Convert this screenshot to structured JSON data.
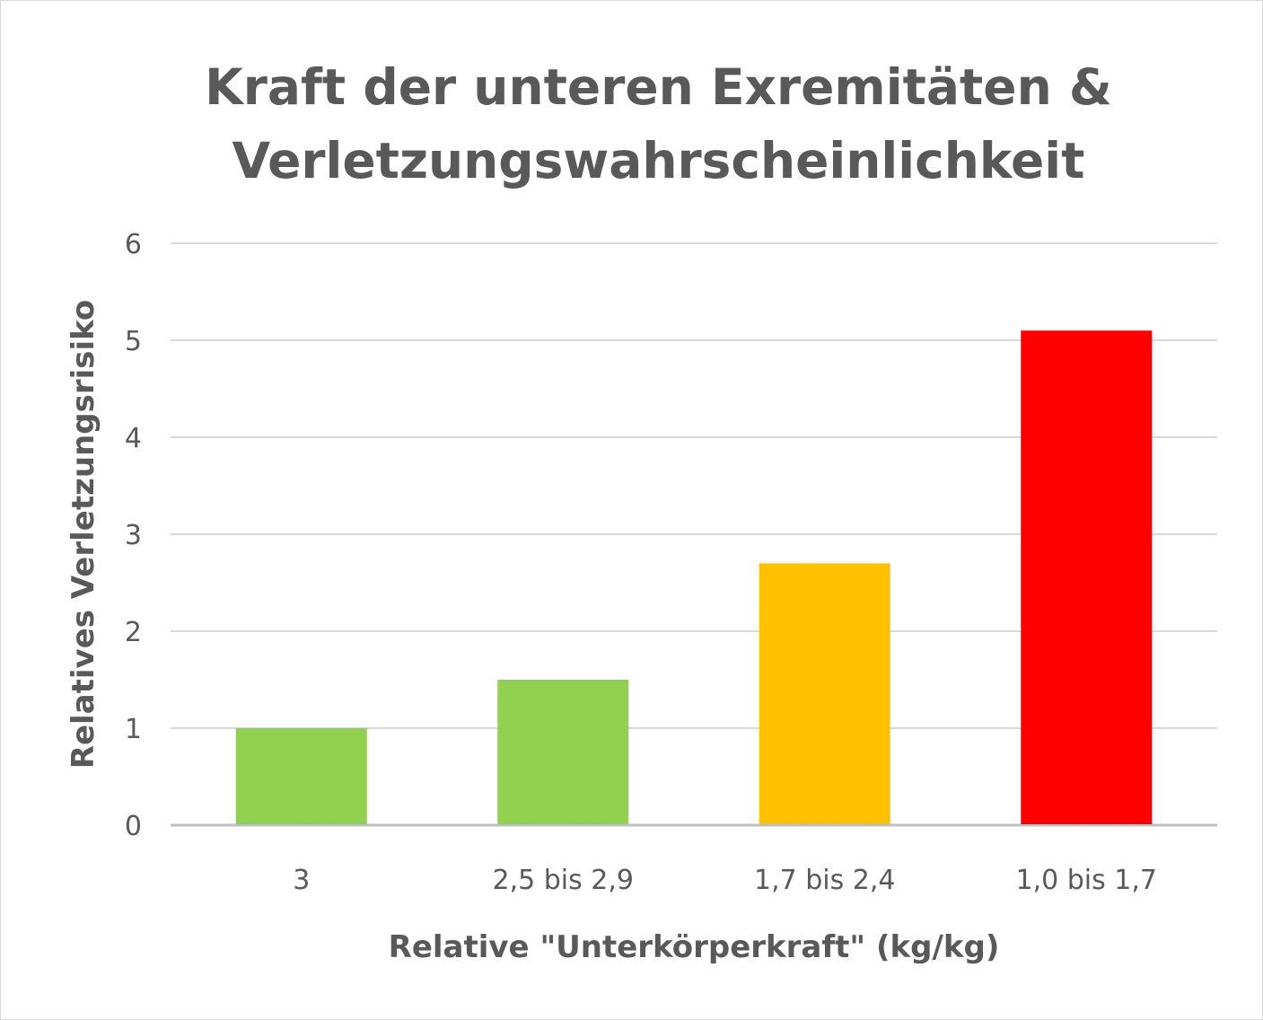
{
  "chart_data": {
    "type": "bar",
    "title": "Kraft der unteren Exremitäten & Verletzungswahrscheinlichkeit",
    "title_lines": [
      "Kraft der unteren Exremitäten &",
      "Verletzungswahrscheinlichkeit"
    ],
    "categories": [
      "3",
      "2,5 bis 2,9",
      "1,7 bis 2,4",
      "1,0 bis 1,7"
    ],
    "values": [
      1.0,
      1.5,
      2.7,
      5.1
    ],
    "bar_colors": [
      "#92d050",
      "#92d050",
      "#ffc000",
      "#ff0000"
    ],
    "xlabel": "Relative \"Unterkörperkraft\" (kg/kg)",
    "ylabel": "Relatives Verletzungsrisiko",
    "ylim": [
      0,
      6
    ],
    "yticks": [
      "0",
      "1",
      "2",
      "3",
      "4",
      "5",
      "6"
    ],
    "grid": true,
    "legend": "none"
  },
  "colors": {
    "text": "#595959",
    "grid": "#d9d9d9",
    "axis": "#bfbfbf"
  }
}
